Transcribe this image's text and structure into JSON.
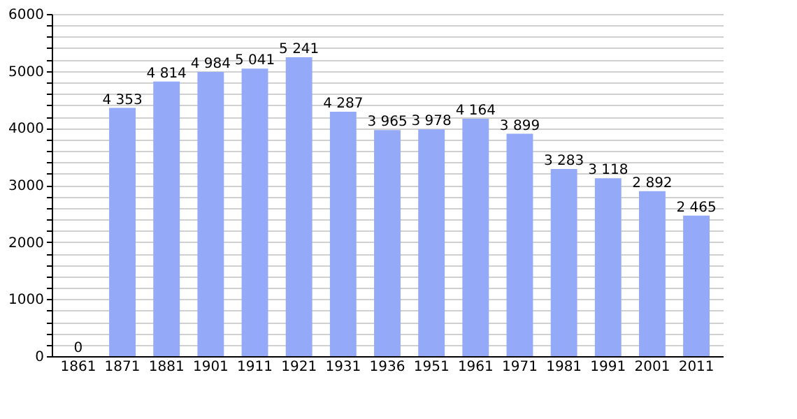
{
  "chart_data": {
    "type": "bar",
    "categories": [
      "1861",
      "1871",
      "1881",
      "1901",
      "1911",
      "1921",
      "1931",
      "1936",
      "1951",
      "1961",
      "1971",
      "1981",
      "1991",
      "2001",
      "2011"
    ],
    "values": [
      0,
      4353,
      4814,
      4984,
      5041,
      5241,
      4287,
      3965,
      3978,
      4164,
      3899,
      3283,
      3118,
      2892,
      2465
    ],
    "value_labels": [
      "0",
      "4 353",
      "4 814",
      "4 984",
      "5 041",
      "5 241",
      "4 287",
      "3 965",
      "3 978",
      "4 164",
      "3 899",
      "3 283",
      "3 118",
      "2 892",
      "2 465"
    ],
    "color": "#94aaf9",
    "ylim": [
      0,
      6000
    ],
    "yticks": [
      0,
      {
        "value": 200,
        "label": null
      },
      {
        "value": 400,
        "label": null
      },
      {
        "value": 600,
        "label": null
      },
      {
        "value": 800,
        "label": null
      },
      1000,
      {
        "value": 1200,
        "label": null
      },
      {
        "value": 1400,
        "label": null
      },
      {
        "value": 1600,
        "label": null
      },
      {
        "value": 1800,
        "label": null
      },
      2000,
      {
        "value": 2200,
        "label": null
      },
      {
        "value": 2400,
        "label": null
      },
      {
        "value": 2600,
        "label": null
      },
      {
        "value": 2800,
        "label": null
      },
      3000,
      {
        "value": 3200,
        "label": null
      },
      {
        "value": 3400,
        "label": null
      },
      {
        "value": 3600,
        "label": null
      },
      {
        "value": 3800,
        "label": null
      },
      4000,
      {
        "value": 4200,
        "label": null
      },
      {
        "value": 4400,
        "label": null
      },
      {
        "value": 4600,
        "label": null
      },
      {
        "value": 4800,
        "label": null
      },
      5000,
      {
        "value": 5200,
        "label": null
      },
      {
        "value": 5400,
        "label": null
      },
      {
        "value": 5600,
        "label": null
      },
      {
        "value": 5800,
        "label": null
      },
      6000
    ],
    "grid": "y"
  }
}
